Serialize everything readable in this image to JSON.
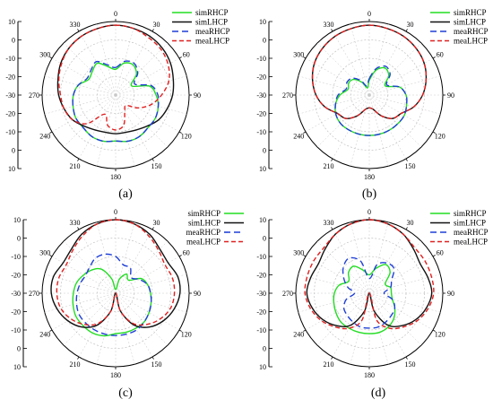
{
  "chart_data": [
    {
      "type": "polar",
      "panel_label": "(a)",
      "angle_ticks": [
        "0",
        "30",
        "60",
        "90",
        "120",
        "150",
        "180",
        "210",
        "240",
        "270",
        "300",
        "330"
      ],
      "radial_ticks_upper": [
        "10",
        "0",
        "-10",
        "-20",
        "-30"
      ],
      "radial_ticks_lower": [
        "-20",
        "-10",
        "0",
        "10"
      ],
      "rlim": [
        -30,
        10
      ],
      "series": [
        {
          "name": "simRHCP",
          "color": "#22dd22",
          "dash": "solid",
          "theta": [
            0,
            15,
            30,
            45,
            60,
            75,
            90,
            105,
            120,
            135,
            150,
            165,
            180,
            195,
            210,
            225,
            240,
            255,
            270,
            285,
            300,
            315,
            330,
            345
          ],
          "values": [
            -16,
            -12,
            -11,
            -14,
            -20,
            -11,
            -8,
            -6,
            -5,
            -5,
            -4,
            -4,
            -5,
            -4,
            -4,
            -5,
            -5,
            -6,
            -7,
            -9,
            -13,
            -12,
            -10,
            -14
          ]
        },
        {
          "name": "simLHCP",
          "color": "#111111",
          "dash": "solid",
          "theta": [
            0,
            15,
            30,
            45,
            60,
            75,
            90,
            105,
            120,
            135,
            150,
            165,
            180,
            195,
            210,
            225,
            240,
            255,
            270,
            285,
            300,
            315,
            330,
            345
          ],
          "values": [
            8,
            7.5,
            7,
            6,
            4.5,
            2.5,
            1,
            -1,
            -3,
            -6,
            -8,
            -9,
            -9,
            -9,
            -8,
            -6,
            -3,
            -1,
            1,
            2.5,
            4.5,
            6,
            7,
            7.5
          ]
        },
        {
          "name": "meaRHCP",
          "color": "#1f3fd6",
          "dash": "long",
          "theta": [
            0,
            15,
            30,
            45,
            60,
            75,
            90,
            105,
            120,
            135,
            150,
            165,
            180,
            195,
            210,
            225,
            240,
            255,
            270,
            285,
            300,
            315,
            330,
            345
          ],
          "values": [
            -15,
            -11,
            -10,
            -13,
            -18,
            -10,
            -7,
            -6,
            -5,
            -5,
            -4,
            -4,
            -5,
            -4,
            -4,
            -5,
            -5,
            -6,
            -7,
            -9,
            -12,
            -11,
            -9,
            -13
          ]
        },
        {
          "name": "meaLHCP",
          "color": "#e02020",
          "dash": "short",
          "theta": [
            0,
            15,
            30,
            45,
            60,
            75,
            90,
            105,
            120,
            135,
            150,
            165,
            180,
            195,
            210,
            225,
            240,
            255,
            270,
            285,
            300,
            315,
            330,
            345
          ],
          "values": [
            8,
            7.5,
            6,
            5,
            3,
            0,
            -5,
            -10,
            -16,
            -22,
            -20,
            -13,
            -11,
            -13,
            -18,
            -8,
            -3,
            -1,
            0,
            2,
            4,
            6,
            7,
            7.5
          ]
        }
      ]
    },
    {
      "type": "polar",
      "panel_label": "(b)",
      "angle_ticks": [
        "0",
        "30",
        "60",
        "90",
        "120",
        "150",
        "180",
        "210",
        "240",
        "270",
        "300",
        "330"
      ],
      "radial_ticks_upper": [
        "10",
        "0",
        "-10",
        "-20",
        "-30"
      ],
      "radial_ticks_lower": [
        "-20",
        "-10",
        "0",
        "10"
      ],
      "rlim": [
        -30,
        10
      ],
      "series": [
        {
          "name": "simRHCP",
          "color": "#22dd22",
          "dash": "solid",
          "theta": [
            0,
            15,
            30,
            45,
            60,
            75,
            90,
            105,
            120,
            135,
            150,
            165,
            180,
            195,
            210,
            225,
            240,
            255,
            270,
            285,
            300,
            315,
            330,
            345
          ],
          "values": [
            -22,
            -16,
            -13,
            -15,
            -20,
            -13,
            -10,
            -9,
            -8,
            -8,
            -8,
            -8,
            -8,
            -8,
            -8,
            -8,
            -9,
            -11,
            -14,
            -18,
            -17,
            -18,
            -22,
            -26
          ]
        },
        {
          "name": "simLHCP",
          "color": "#111111",
          "dash": "solid",
          "theta": [
            0,
            15,
            30,
            45,
            60,
            75,
            90,
            105,
            120,
            135,
            150,
            165,
            180,
            195,
            210,
            225,
            240,
            255,
            270,
            285,
            300,
            315,
            330,
            345
          ],
          "values": [
            8,
            7.5,
            7,
            6,
            4.5,
            2,
            -1,
            -5,
            -10,
            -12,
            -17,
            -22,
            -23,
            -22,
            -17,
            -12,
            -10,
            -5,
            -1,
            2,
            4.5,
            6,
            7,
            7.5
          ]
        },
        {
          "name": "meaRHCP",
          "color": "#1f3fd6",
          "dash": "long",
          "theta": [
            0,
            15,
            30,
            45,
            60,
            75,
            90,
            105,
            120,
            135,
            150,
            165,
            180,
            195,
            210,
            225,
            240,
            255,
            270,
            285,
            300,
            315,
            330,
            345
          ],
          "values": [
            -21,
            -15,
            -12,
            -14,
            -19,
            -13,
            -10,
            -9,
            -8,
            -8,
            -8,
            -8,
            -8,
            -8,
            -8,
            -8,
            -9,
            -11,
            -13,
            -17,
            -16,
            -17,
            -21,
            -25
          ]
        },
        {
          "name": "meaLHCP",
          "color": "#e02020",
          "dash": "short",
          "theta": [
            0,
            15,
            30,
            45,
            60,
            75,
            90,
            105,
            120,
            135,
            150,
            165,
            180,
            195,
            210,
            225,
            240,
            255,
            270,
            285,
            300,
            315,
            330,
            345
          ],
          "values": [
            8,
            7.5,
            7,
            6,
            4.5,
            2,
            -1,
            -5,
            -10,
            -12,
            -17,
            -22,
            -23,
            -22,
            -17,
            -12,
            -10,
            -5,
            -1,
            2,
            4.5,
            6,
            7,
            7.5
          ]
        }
      ]
    },
    {
      "type": "polar",
      "panel_label": "(c)",
      "angle_ticks": [
        "0",
        "30",
        "60",
        "90",
        "120",
        "150",
        "180",
        "210",
        "240",
        "270",
        "300",
        "330"
      ],
      "radial_ticks_upper": [
        "10",
        "0",
        "-10",
        "-20",
        "-30"
      ],
      "radial_ticks_lower": [
        "-20",
        "-10",
        "0",
        "10"
      ],
      "rlim": [
        -30,
        10
      ],
      "series": [
        {
          "name": "simRHCP",
          "color": "#22dd22",
          "dash": "solid",
          "theta": [
            0,
            15,
            30,
            45,
            60,
            75,
            90,
            105,
            120,
            135,
            150,
            165,
            180,
            195,
            210,
            225,
            240,
            255,
            270,
            285,
            300,
            315,
            330,
            345
          ],
          "values": [
            -28,
            -22,
            -18,
            -20,
            -14,
            -12,
            -11,
            -10,
            -9,
            -8,
            -8,
            -8,
            -8,
            -6,
            -5,
            -5,
            -5,
            -6,
            -7,
            -8,
            -10,
            -12,
            -15,
            -22
          ]
        },
        {
          "name": "simLHCP",
          "color": "#111111",
          "dash": "solid",
          "theta": [
            0,
            15,
            30,
            45,
            60,
            75,
            90,
            105,
            120,
            135,
            150,
            165,
            180,
            195,
            210,
            225,
            240,
            255,
            270,
            285,
            300,
            315,
            330,
            345
          ],
          "values": [
            10,
            9,
            7,
            4,
            3,
            5,
            5,
            3,
            0,
            -4,
            -10,
            -20,
            -30,
            -20,
            -10,
            -4,
            0,
            3,
            5,
            5,
            3,
            4,
            7,
            9
          ]
        },
        {
          "name": "meaRHCP",
          "color": "#1f3fd6",
          "dash": "long",
          "theta": [
            0,
            15,
            30,
            45,
            60,
            75,
            90,
            105,
            120,
            135,
            150,
            165,
            180,
            195,
            210,
            225,
            240,
            255,
            270,
            285,
            300,
            315,
            330,
            345
          ],
          "values": [
            -10,
            -14,
            -14,
            -18,
            -15,
            -12,
            -11,
            -10,
            -9,
            -8,
            -7,
            -7,
            -7,
            -7,
            -7,
            -7,
            -7,
            -8,
            -9,
            -10,
            -11,
            -10,
            -8,
            -8
          ]
        },
        {
          "name": "meaLHCP",
          "color": "#e02020",
          "dash": "short",
          "theta": [
            0,
            15,
            30,
            45,
            60,
            75,
            90,
            105,
            120,
            135,
            150,
            165,
            180,
            195,
            210,
            225,
            240,
            255,
            270,
            285,
            300,
            315,
            330,
            345
          ],
          "values": [
            10,
            9,
            6,
            3,
            1,
            2,
            2,
            1,
            -2,
            -6,
            -11,
            -20,
            -30,
            -20,
            -11,
            -6,
            -2,
            1,
            2,
            2,
            1,
            3,
            6,
            9
          ]
        }
      ]
    },
    {
      "type": "polar",
      "panel_label": "(d)",
      "angle_ticks": [
        "0",
        "30",
        "60",
        "90",
        "120",
        "150",
        "180",
        "210",
        "240",
        "270",
        "300",
        "330"
      ],
      "radial_ticks_upper": [
        "10",
        "0",
        "-10",
        "-20",
        "-30"
      ],
      "radial_ticks_lower": [
        "-20",
        "-10",
        "0",
        "10"
      ],
      "rlim": [
        -30,
        10
      ],
      "series": [
        {
          "name": "simRHCP",
          "color": "#22dd22",
          "dash": "solid",
          "theta": [
            0,
            15,
            30,
            45,
            60,
            75,
            90,
            105,
            120,
            135,
            150,
            165,
            180,
            195,
            210,
            225,
            240,
            255,
            270,
            285,
            300,
            315,
            330,
            345
          ],
          "values": [
            -20,
            -16,
            -12,
            -14,
            -20,
            -18,
            -18,
            -17,
            -14,
            -11,
            -9,
            -8,
            -8,
            -8,
            -8,
            -8,
            -9,
            -10,
            -11,
            -13,
            -17,
            -14,
            -13,
            -17
          ]
        },
        {
          "name": "simLHCP",
          "color": "#111111",
          "dash": "solid",
          "theta": [
            0,
            15,
            30,
            45,
            60,
            75,
            90,
            105,
            120,
            135,
            150,
            165,
            180,
            195,
            210,
            225,
            240,
            255,
            270,
            285,
            300,
            315,
            330,
            345
          ],
          "values": [
            10,
            9,
            7,
            4,
            2,
            3,
            4,
            2,
            -1,
            -5,
            -10,
            -20,
            -30,
            -20,
            -10,
            -5,
            -1,
            2,
            4,
            3,
            2,
            4,
            7,
            9
          ]
        },
        {
          "name": "meaRHCP",
          "color": "#1f3fd6",
          "dash": "long",
          "theta": [
            0,
            15,
            30,
            45,
            60,
            75,
            90,
            105,
            120,
            135,
            150,
            165,
            180,
            195,
            210,
            225,
            240,
            255,
            270,
            285,
            300,
            315,
            330,
            345
          ],
          "values": [
            -22,
            -14,
            -11,
            -11,
            -16,
            -18,
            -22,
            -17,
            -14,
            -13,
            -12,
            -11,
            -11,
            -11,
            -12,
            -13,
            -14,
            -17,
            -22,
            -18,
            -14,
            -10,
            -8,
            -12
          ]
        },
        {
          "name": "meaLHCP",
          "color": "#e02020",
          "dash": "short",
          "theta": [
            0,
            15,
            30,
            45,
            60,
            75,
            90,
            105,
            120,
            135,
            150,
            165,
            180,
            195,
            210,
            225,
            240,
            255,
            270,
            285,
            300,
            315,
            330,
            345
          ],
          "values": [
            10,
            9,
            7,
            5,
            5,
            5,
            5,
            3,
            0,
            -4,
            -8,
            -15,
            -30,
            -15,
            -8,
            -4,
            0,
            3,
            5,
            5,
            5,
            5,
            7,
            9
          ]
        }
      ]
    }
  ]
}
